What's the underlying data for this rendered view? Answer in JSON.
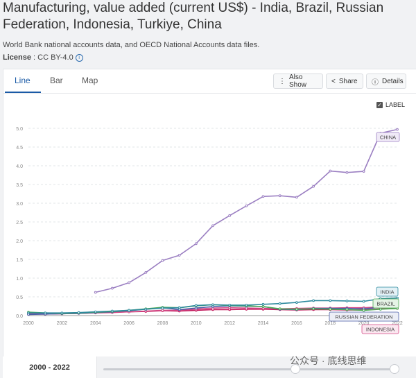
{
  "page": {
    "title": "Manufacturing, value added (current US$) - India, Brazil, Russian Federation, Indonesia, Turkiye, China",
    "source": "World Bank national accounts data, and OECD National Accounts data files.",
    "license_label": "License",
    "license_value": " : CC BY-4.0",
    "info_icon": "i"
  },
  "tabs": [
    {
      "label": "Line"
    },
    {
      "label": "Bar"
    },
    {
      "label": "Map"
    }
  ],
  "toolbar": {
    "also_show_icon": "⋮",
    "also_show": "Also Show",
    "share_icon": "<",
    "share": "Share",
    "details_icon": "ⓘ",
    "details": "Details"
  },
  "label_toggle": {
    "check": "✓",
    "text": "LABEL"
  },
  "footer": {
    "range": "2000 - 2022"
  },
  "watermark": "公众号 · 底线思维",
  "colors": {
    "china": "#9b7fc2",
    "india": "#2d8a9e",
    "brazil": "#4caa54",
    "russia": "#4b5fa8",
    "indonesia": "#d44a86",
    "turkiye": "#c2185b"
  },
  "chart_data": {
    "type": "line",
    "x": [
      2000,
      2001,
      2002,
      2003,
      2004,
      2005,
      2006,
      2007,
      2008,
      2009,
      2010,
      2011,
      2012,
      2013,
      2014,
      2015,
      2016,
      2017,
      2018,
      2019,
      2020,
      2021,
      2022
    ],
    "xticks": [
      "2000",
      "2002",
      "2004",
      "2006",
      "2008",
      "2010",
      "2012",
      "2014",
      "2016",
      "2018",
      "2020",
      "2022"
    ],
    "yticks": [
      "0.0",
      "0.5",
      "1.0",
      "1.5",
      "2.0",
      "2.5",
      "3.0",
      "3.5",
      "4.0",
      "4.5",
      "5.0"
    ],
    "ylim": [
      0,
      5.0
    ],
    "grid": true,
    "series": [
      {
        "name": "CHINA",
        "color": "#9b7fc2",
        "label_bg": "#f0eaf7",
        "values": [
          null,
          null,
          null,
          null,
          0.62,
          0.73,
          0.88,
          1.15,
          1.47,
          1.61,
          1.92,
          2.4,
          2.67,
          2.93,
          3.18,
          3.2,
          3.16,
          3.45,
          3.86,
          3.82,
          3.85,
          4.87,
          4.97
        ]
      },
      {
        "name": "INDIA",
        "color": "#2d8a9e",
        "label_bg": "#e3f1f6",
        "values": [
          0.07,
          0.07,
          0.07,
          0.08,
          0.1,
          0.12,
          0.14,
          0.17,
          0.2,
          0.21,
          0.27,
          0.29,
          0.28,
          0.28,
          0.3,
          0.32,
          0.35,
          0.4,
          0.4,
          0.39,
          0.38,
          0.45,
          0.47
        ]
      },
      {
        "name": "BRAZIL",
        "color": "#4caa54",
        "label_bg": "#e5f4e6",
        "values": [
          0.09,
          0.07,
          0.06,
          0.07,
          0.09,
          0.11,
          0.14,
          0.18,
          0.22,
          0.21,
          0.26,
          0.29,
          0.27,
          0.26,
          0.24,
          0.18,
          0.17,
          0.18,
          0.17,
          0.16,
          0.14,
          0.17,
          0.19
        ]
      },
      {
        "name": "RUSSIAN FEDERATION",
        "color": "#4b5fa8",
        "label_bg": "#eceef6",
        "values": [
          0.03,
          0.04,
          0.05,
          0.06,
          0.08,
          0.1,
          0.13,
          0.17,
          0.21,
          0.16,
          0.2,
          0.24,
          0.26,
          0.25,
          0.24,
          0.17,
          0.16,
          0.19,
          0.19,
          0.19,
          0.18,
          0.22,
          0.24
        ]
      },
      {
        "name": "INDONESIA",
        "color": "#d44a86",
        "label_bg": "#fbe7f0",
        "values": [
          0.04,
          0.04,
          0.05,
          0.06,
          0.07,
          0.08,
          0.1,
          0.12,
          0.14,
          0.14,
          0.17,
          0.2,
          0.21,
          0.2,
          0.19,
          0.18,
          0.19,
          0.2,
          0.2,
          0.21,
          0.21,
          0.23,
          0.26
        ]
      },
      {
        "name": "",
        "color": "#c2185b",
        "label_bg": "",
        "values": [
          0.05,
          0.04,
          0.05,
          0.06,
          0.08,
          0.09,
          0.1,
          0.11,
          0.13,
          0.12,
          0.14,
          0.16,
          0.16,
          0.17,
          0.17,
          0.16,
          0.15,
          0.16,
          0.16,
          0.15,
          0.15,
          0.18,
          0.19
        ]
      }
    ]
  }
}
